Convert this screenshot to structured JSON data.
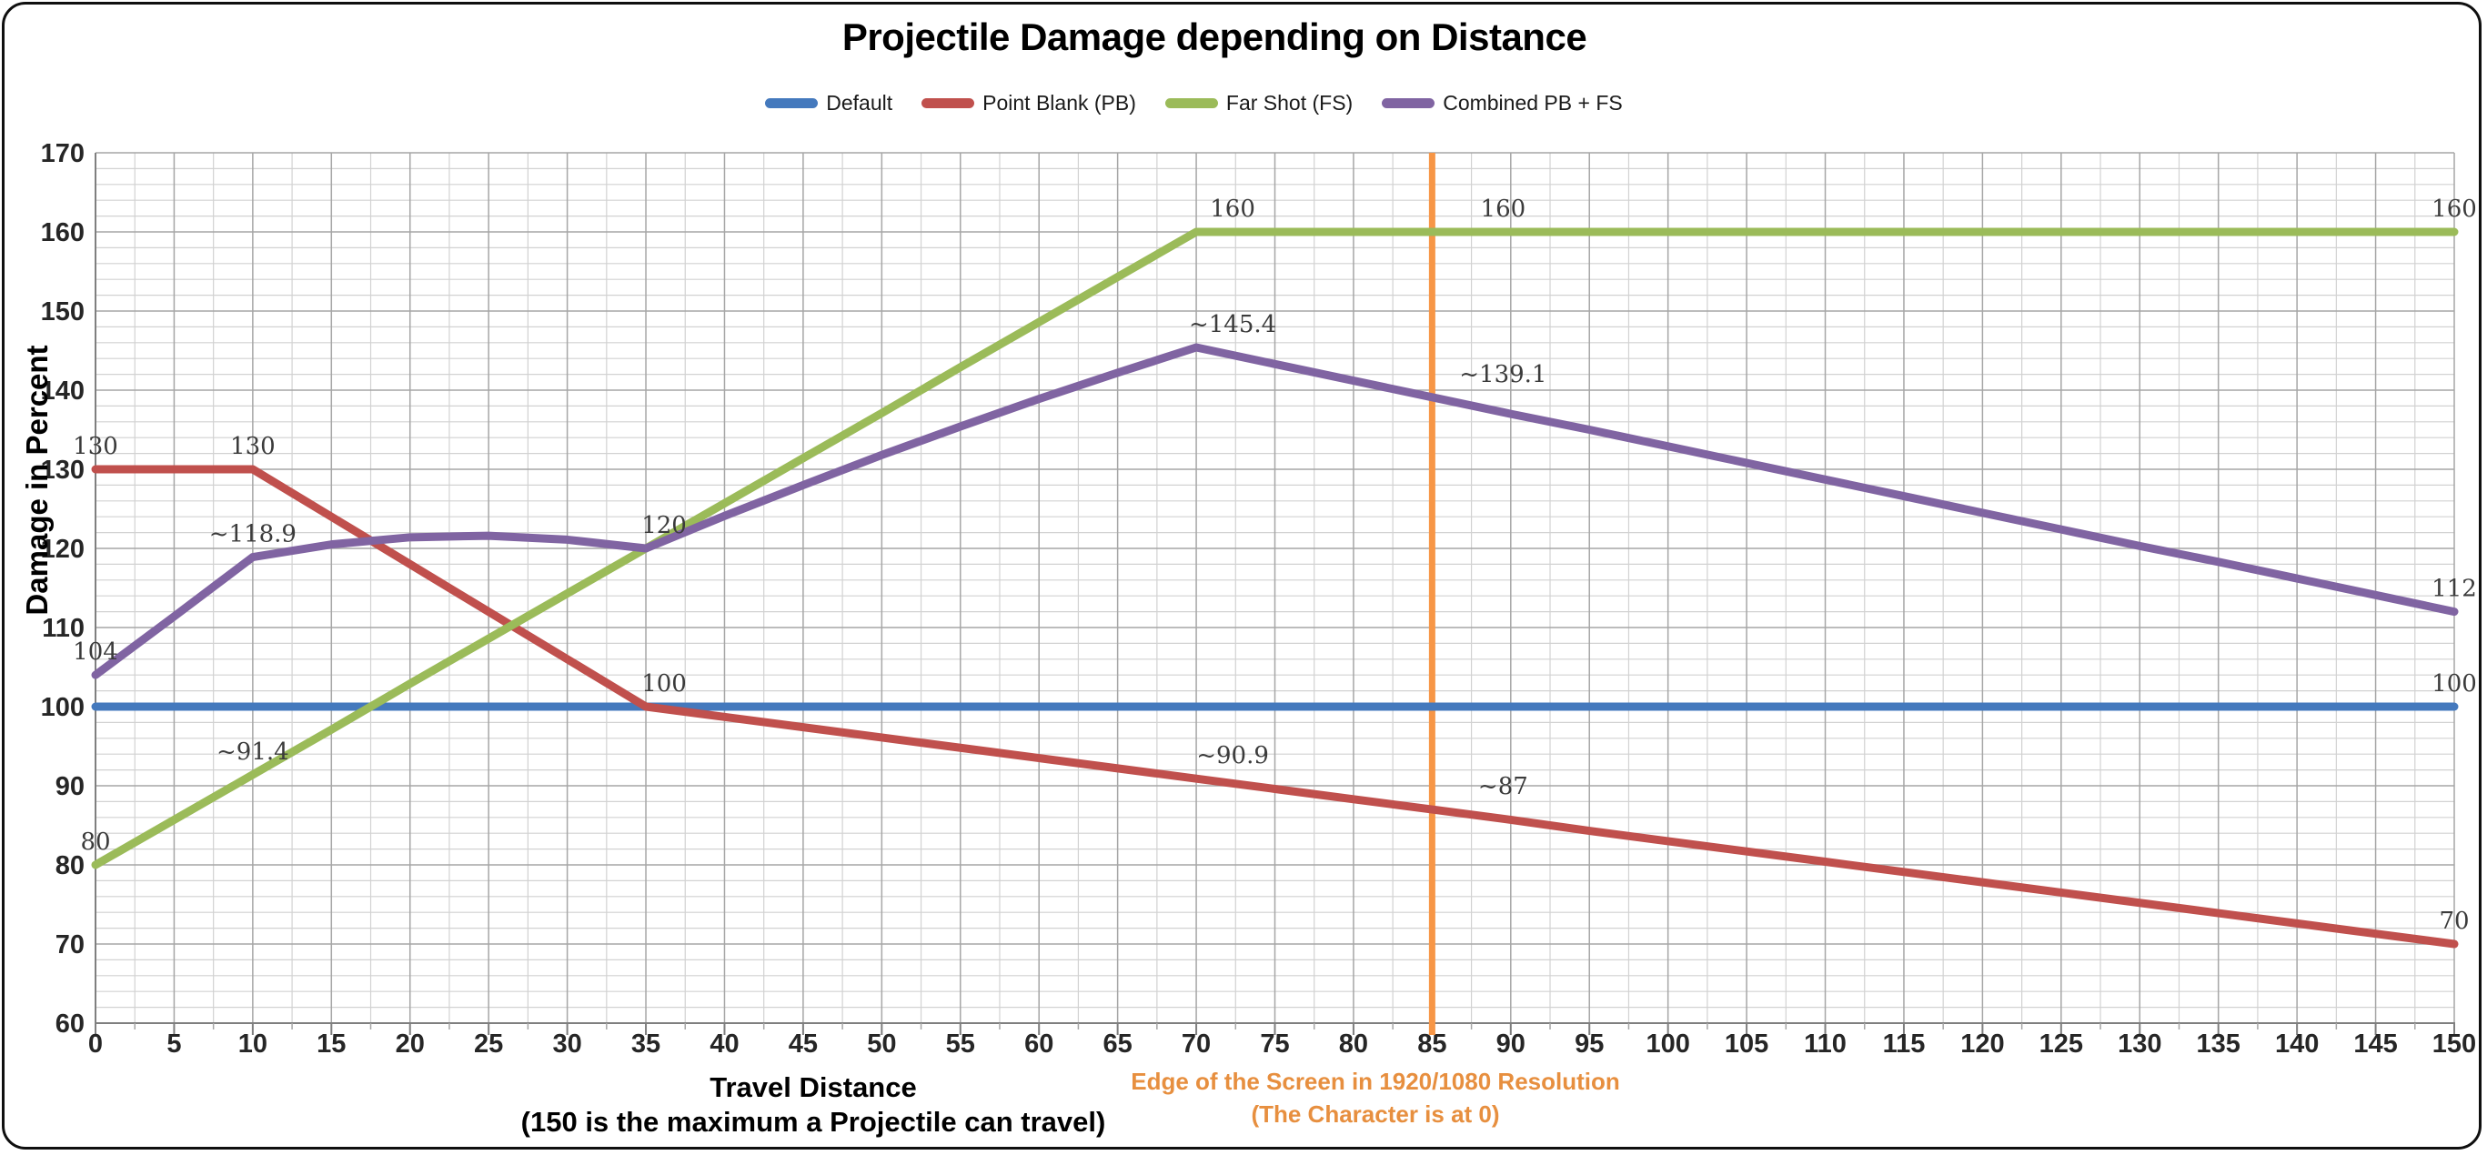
{
  "title": "Projectile Damage depending on Distance",
  "chart_data": {
    "type": "line",
    "x": [
      0,
      5,
      10,
      15,
      20,
      25,
      30,
      35,
      40,
      45,
      50,
      55,
      60,
      65,
      70,
      75,
      80,
      85,
      90,
      95,
      100,
      105,
      110,
      115,
      120,
      125,
      130,
      135,
      140,
      145,
      150
    ],
    "series": [
      {
        "name": "Default",
        "color": "#4479BD",
        "values": [
          100,
          100,
          100,
          100,
          100,
          100,
          100,
          100,
          100,
          100,
          100,
          100,
          100,
          100,
          100,
          100,
          100,
          100,
          100,
          100,
          100,
          100,
          100,
          100,
          100,
          100,
          100,
          100,
          100,
          100,
          100
        ]
      },
      {
        "name": "Point Blank (PB)",
        "color": "#C0504D",
        "values": [
          130,
          130,
          130,
          124,
          118,
          112,
          106,
          100,
          98.7,
          97.4,
          96.1,
          94.8,
          93.5,
          92.2,
          90.9,
          89.6,
          88.3,
          87,
          85.7,
          84.3,
          83,
          81.7,
          80.4,
          79.1,
          77.8,
          76.5,
          75.2,
          73.9,
          72.6,
          71.3,
          70
        ]
      },
      {
        "name": "Far Shot (FS)",
        "color": "#9BBB59",
        "values": [
          80,
          85.7,
          91.4,
          97.1,
          102.9,
          108.6,
          114.3,
          120,
          125.7,
          131.4,
          137.1,
          142.9,
          148.6,
          154.3,
          160,
          160,
          160,
          160,
          160,
          160,
          160,
          160,
          160,
          160,
          160,
          160,
          160,
          160,
          160,
          160,
          160
        ]
      },
      {
        "name": "Combined PB + FS",
        "color": "#8064A2",
        "values": [
          104,
          111.4,
          118.9,
          120.5,
          121.4,
          121.6,
          121.1,
          120,
          124.1,
          128,
          131.8,
          135.4,
          138.9,
          142.2,
          145.4,
          143.3,
          141.2,
          139.1,
          137,
          135,
          132.9,
          130.8,
          128.7,
          126.6,
          124.5,
          122.4,
          120.3,
          118.3,
          116.2,
          114.1,
          112
        ]
      }
    ],
    "data_labels": [
      {
        "series": 1,
        "x": 0,
        "y": 130,
        "text": "130",
        "dx": 0
      },
      {
        "series": 1,
        "x": 10,
        "y": 130,
        "text": "130",
        "dx": 0
      },
      {
        "series": 1,
        "x": 35,
        "y": 100,
        "text": "100",
        "dx": 20
      },
      {
        "series": 1,
        "x": 70,
        "y": 90.9,
        "text": "~90.9",
        "dx": 40
      },
      {
        "series": 1,
        "x": 85,
        "y": 87,
        "text": "~87",
        "dx": 78
      },
      {
        "series": 1,
        "x": 150,
        "y": 70,
        "text": "70",
        "dx": 0
      },
      {
        "series": 0,
        "x": 150,
        "y": 100,
        "text": "100",
        "dx": 0
      },
      {
        "series": 2,
        "x": 0,
        "y": 80,
        "text": "80",
        "dx": 0
      },
      {
        "series": 2,
        "x": 10,
        "y": 91.4,
        "text": "~91.4",
        "dx": 0
      },
      {
        "series": 2,
        "x": 35,
        "y": 120,
        "text": "120",
        "dx": 20
      },
      {
        "series": 2,
        "x": 70,
        "y": 160,
        "text": "160",
        "dx": 40
      },
      {
        "series": 2,
        "x": 85,
        "y": 160,
        "text": "160",
        "dx": 78
      },
      {
        "series": 2,
        "x": 150,
        "y": 160,
        "text": "160",
        "dx": 0
      },
      {
        "series": 3,
        "x": 0,
        "y": 104,
        "text": "104",
        "dx": 0
      },
      {
        "series": 3,
        "x": 10,
        "y": 118.9,
        "text": "~118.9",
        "dx": 0
      },
      {
        "series": 3,
        "x": 70,
        "y": 145.4,
        "text": "~145.4",
        "dx": 40
      },
      {
        "series": 3,
        "x": 85,
        "y": 139.1,
        "text": "~139.1",
        "dx": 78
      },
      {
        "series": 3,
        "x": 150,
        "y": 112,
        "text": "112",
        "dx": 0
      }
    ],
    "xlabel": {
      "line1": "Travel Distance",
      "line2": "(150 is the maximum a Projectile can travel)"
    },
    "ylabel": "Damage in Percent",
    "xlim": [
      0,
      150
    ],
    "ylim": [
      60,
      170
    ],
    "x_tick_step": 5,
    "x_minor_step": 2.5,
    "y_tick_step": 10,
    "y_minor_step": 2,
    "grid": true,
    "legend_position": "top",
    "vline": {
      "x": 85,
      "color": "#F79646",
      "text_color": "#E78F3F",
      "label_line1": "Edge of the Screen in 1920/1080 Resolution",
      "label_line2": "(The Character is at 0)"
    }
  }
}
